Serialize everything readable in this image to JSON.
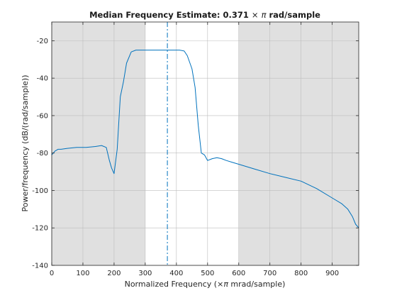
{
  "colors": {
    "shade": "#e0e0e0",
    "plot_background": "#ffffff",
    "line": "#0072bd",
    "grid": "#bdbdbd",
    "axis": "#262626"
  },
  "chart_data": {
    "type": "line",
    "title_prefix": "Median Frequency Estimate: 0.371 ",
    "title_times": "×",
    "title_pi": "π",
    "title_suffix": " rad/sample",
    "xlabel_prefix": "Normalized Frequency  (",
    "xlabel_times": "×",
    "xlabel_pi": "π",
    "xlabel_suffix": " mrad/sample)",
    "ylabel": "Power/frequency (dB/(rad/sample))",
    "xlim": [
      0,
      985
    ],
    "ylim": [
      -140,
      -10
    ],
    "xticks": [
      0,
      100,
      200,
      300,
      400,
      500,
      600,
      700,
      800,
      900
    ],
    "yticks": [
      -140,
      -120,
      -100,
      -80,
      -60,
      -40,
      -20
    ],
    "grid": true,
    "median_frequency": 371,
    "shaded_regions": [
      [
        0,
        300
      ],
      [
        600,
        985
      ]
    ],
    "series": [
      {
        "x": [
          0,
          10,
          20,
          30,
          50,
          80,
          110,
          140,
          160,
          175,
          185,
          192,
          200,
          210,
          220,
          230,
          240,
          255,
          270,
          290,
          310,
          330,
          350,
          370,
          390,
          410,
          425,
          435,
          450,
          460,
          470,
          480,
          490,
          500,
          515,
          530,
          545,
          560,
          580,
          600,
          650,
          700,
          750,
          800,
          850,
          900,
          930,
          950,
          965,
          975,
          985
        ],
        "y": [
          -81,
          -79,
          -78,
          -78,
          -77.5,
          -77,
          -77,
          -76.5,
          -76,
          -77,
          -84,
          -88,
          -91,
          -78,
          -50,
          -42,
          -32,
          -26,
          -25,
          -25,
          -25,
          -25,
          -25,
          -25,
          -25,
          -25,
          -25.5,
          -28,
          -35,
          -45,
          -65,
          -80,
          -81,
          -84,
          -83,
          -82.5,
          -83,
          -84,
          -85,
          -86,
          -88.5,
          -91,
          -93,
          -95,
          -99,
          -104,
          -107,
          -110,
          -114,
          -118,
          -120
        ]
      }
    ]
  }
}
